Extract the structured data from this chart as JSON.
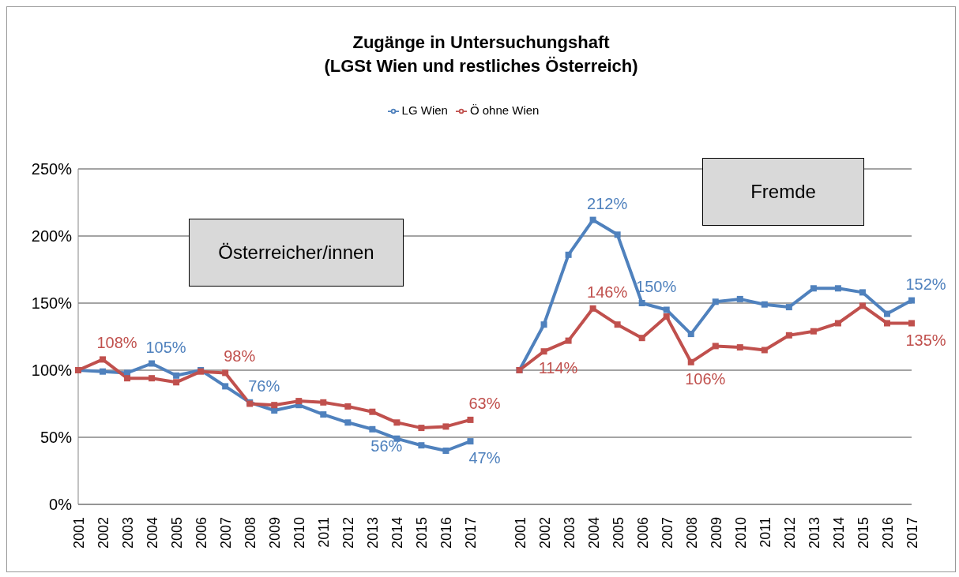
{
  "chart_data": {
    "type": "line",
    "title": "Zugänge in Untersuchungshaft\n(LGSt Wien und restliches Österreich)",
    "categories": [
      "2001",
      "2002",
      "2003",
      "2004",
      "2005",
      "2006",
      "2007",
      "2008",
      "2009",
      "2010",
      "2011",
      "2012",
      "2013",
      "2014",
      "2015",
      "2016",
      "2017",
      null,
      "2001",
      "2002",
      "2003",
      "2004",
      "2005",
      "2006",
      "2007",
      "2008",
      "2009",
      "2010",
      "2011",
      "2012",
      "2013",
      "2014",
      "2015",
      "2016",
      "2017"
    ],
    "series": [
      {
        "name": "LG Wien",
        "color": "#4f81bd",
        "values": [
          100,
          99,
          98,
          105,
          96,
          100,
          88,
          76,
          70,
          74,
          67,
          61,
          56,
          49,
          44,
          40,
          47,
          null,
          100,
          134,
          186,
          212,
          201,
          150,
          145,
          127,
          151,
          153,
          149,
          147,
          161,
          161,
          158,
          142,
          152
        ],
        "value_labels": [
          null,
          null,
          null,
          "105%",
          null,
          null,
          null,
          "76%",
          null,
          null,
          null,
          null,
          "56%",
          null,
          null,
          null,
          "47%",
          null,
          null,
          null,
          null,
          "212%",
          null,
          "150%",
          null,
          null,
          null,
          null,
          null,
          null,
          null,
          null,
          null,
          null,
          "152%"
        ]
      },
      {
        "name": "Ö ohne Wien",
        "color": "#c0504d",
        "values": [
          100,
          108,
          94,
          94,
          91,
          99,
          98,
          75,
          74,
          77,
          76,
          73,
          69,
          61,
          57,
          58,
          63,
          null,
          100,
          114,
          122,
          146,
          134,
          124,
          140,
          106,
          118,
          117,
          115,
          126,
          129,
          135,
          148,
          135,
          135
        ],
        "value_labels": [
          null,
          "108%",
          null,
          null,
          null,
          null,
          "98%",
          null,
          null,
          null,
          null,
          null,
          null,
          null,
          null,
          null,
          "63%",
          null,
          null,
          "114%",
          null,
          "146%",
          null,
          null,
          null,
          "106%",
          null,
          null,
          null,
          null,
          null,
          null,
          null,
          null,
          "135%"
        ]
      }
    ],
    "ylim": [
      0,
      250
    ],
    "yticks": [
      {
        "value": 0,
        "label": "0%"
      },
      {
        "value": 50,
        "label": "50%"
      },
      {
        "value": 100,
        "label": "100%"
      },
      {
        "value": 150,
        "label": "150%"
      },
      {
        "value": 200,
        "label": "200%"
      },
      {
        "value": 250,
        "label": "250%"
      }
    ],
    "grid": "y",
    "legend": "top",
    "marker": "square",
    "line_style": "solid",
    "annotations": [
      "Österreicher/innen",
      "Fremde"
    ]
  }
}
